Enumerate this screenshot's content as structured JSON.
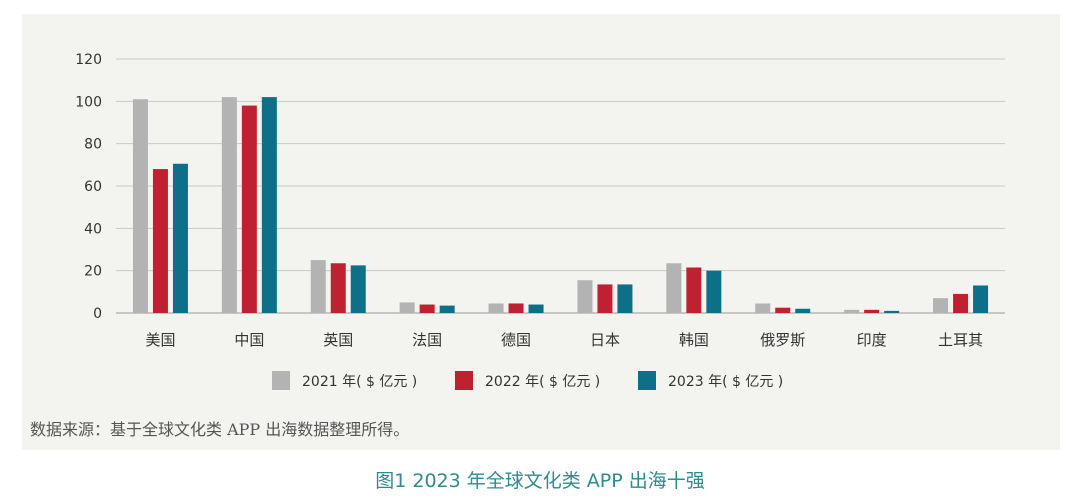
{
  "chart_data": {
    "type": "bar",
    "title": "图1 2023 年全球文化类 APP 出海十强",
    "categories": [
      "美国",
      "中国",
      "英国",
      "法国",
      "德国",
      "日本",
      "韩国",
      "俄罗斯",
      "印度",
      "土耳其"
    ],
    "series": [
      {
        "name": "2021 年( $ 亿元 )",
        "color": "#b3b3b3",
        "values": [
          101,
          102,
          25,
          5,
          4.5,
          15.5,
          23.5,
          4.5,
          1.5,
          7
        ]
      },
      {
        "name": "2022 年( $ 亿元 )",
        "color": "#be2230",
        "values": [
          68,
          98,
          23.5,
          4,
          4.5,
          13.5,
          21.5,
          2.5,
          1.5,
          9
        ]
      },
      {
        "name": "2023 年( $ 亿元 )",
        "color": "#0e6f89",
        "values": [
          70.5,
          102,
          22.5,
          3.5,
          4,
          13.5,
          20,
          2,
          1,
          13
        ]
      }
    ],
    "ylim": [
      0,
      120
    ],
    "yticks": [
      0,
      20,
      40,
      60,
      80,
      100,
      120
    ],
    "xlabel": "",
    "ylabel": "",
    "grid": true,
    "legend_position": "bottom-center"
  },
  "source_note": "数据来源：基于全球文化类 APP 出海数据整理所得。",
  "caption": "图1 2023 年全球文化类 APP 出海十强"
}
